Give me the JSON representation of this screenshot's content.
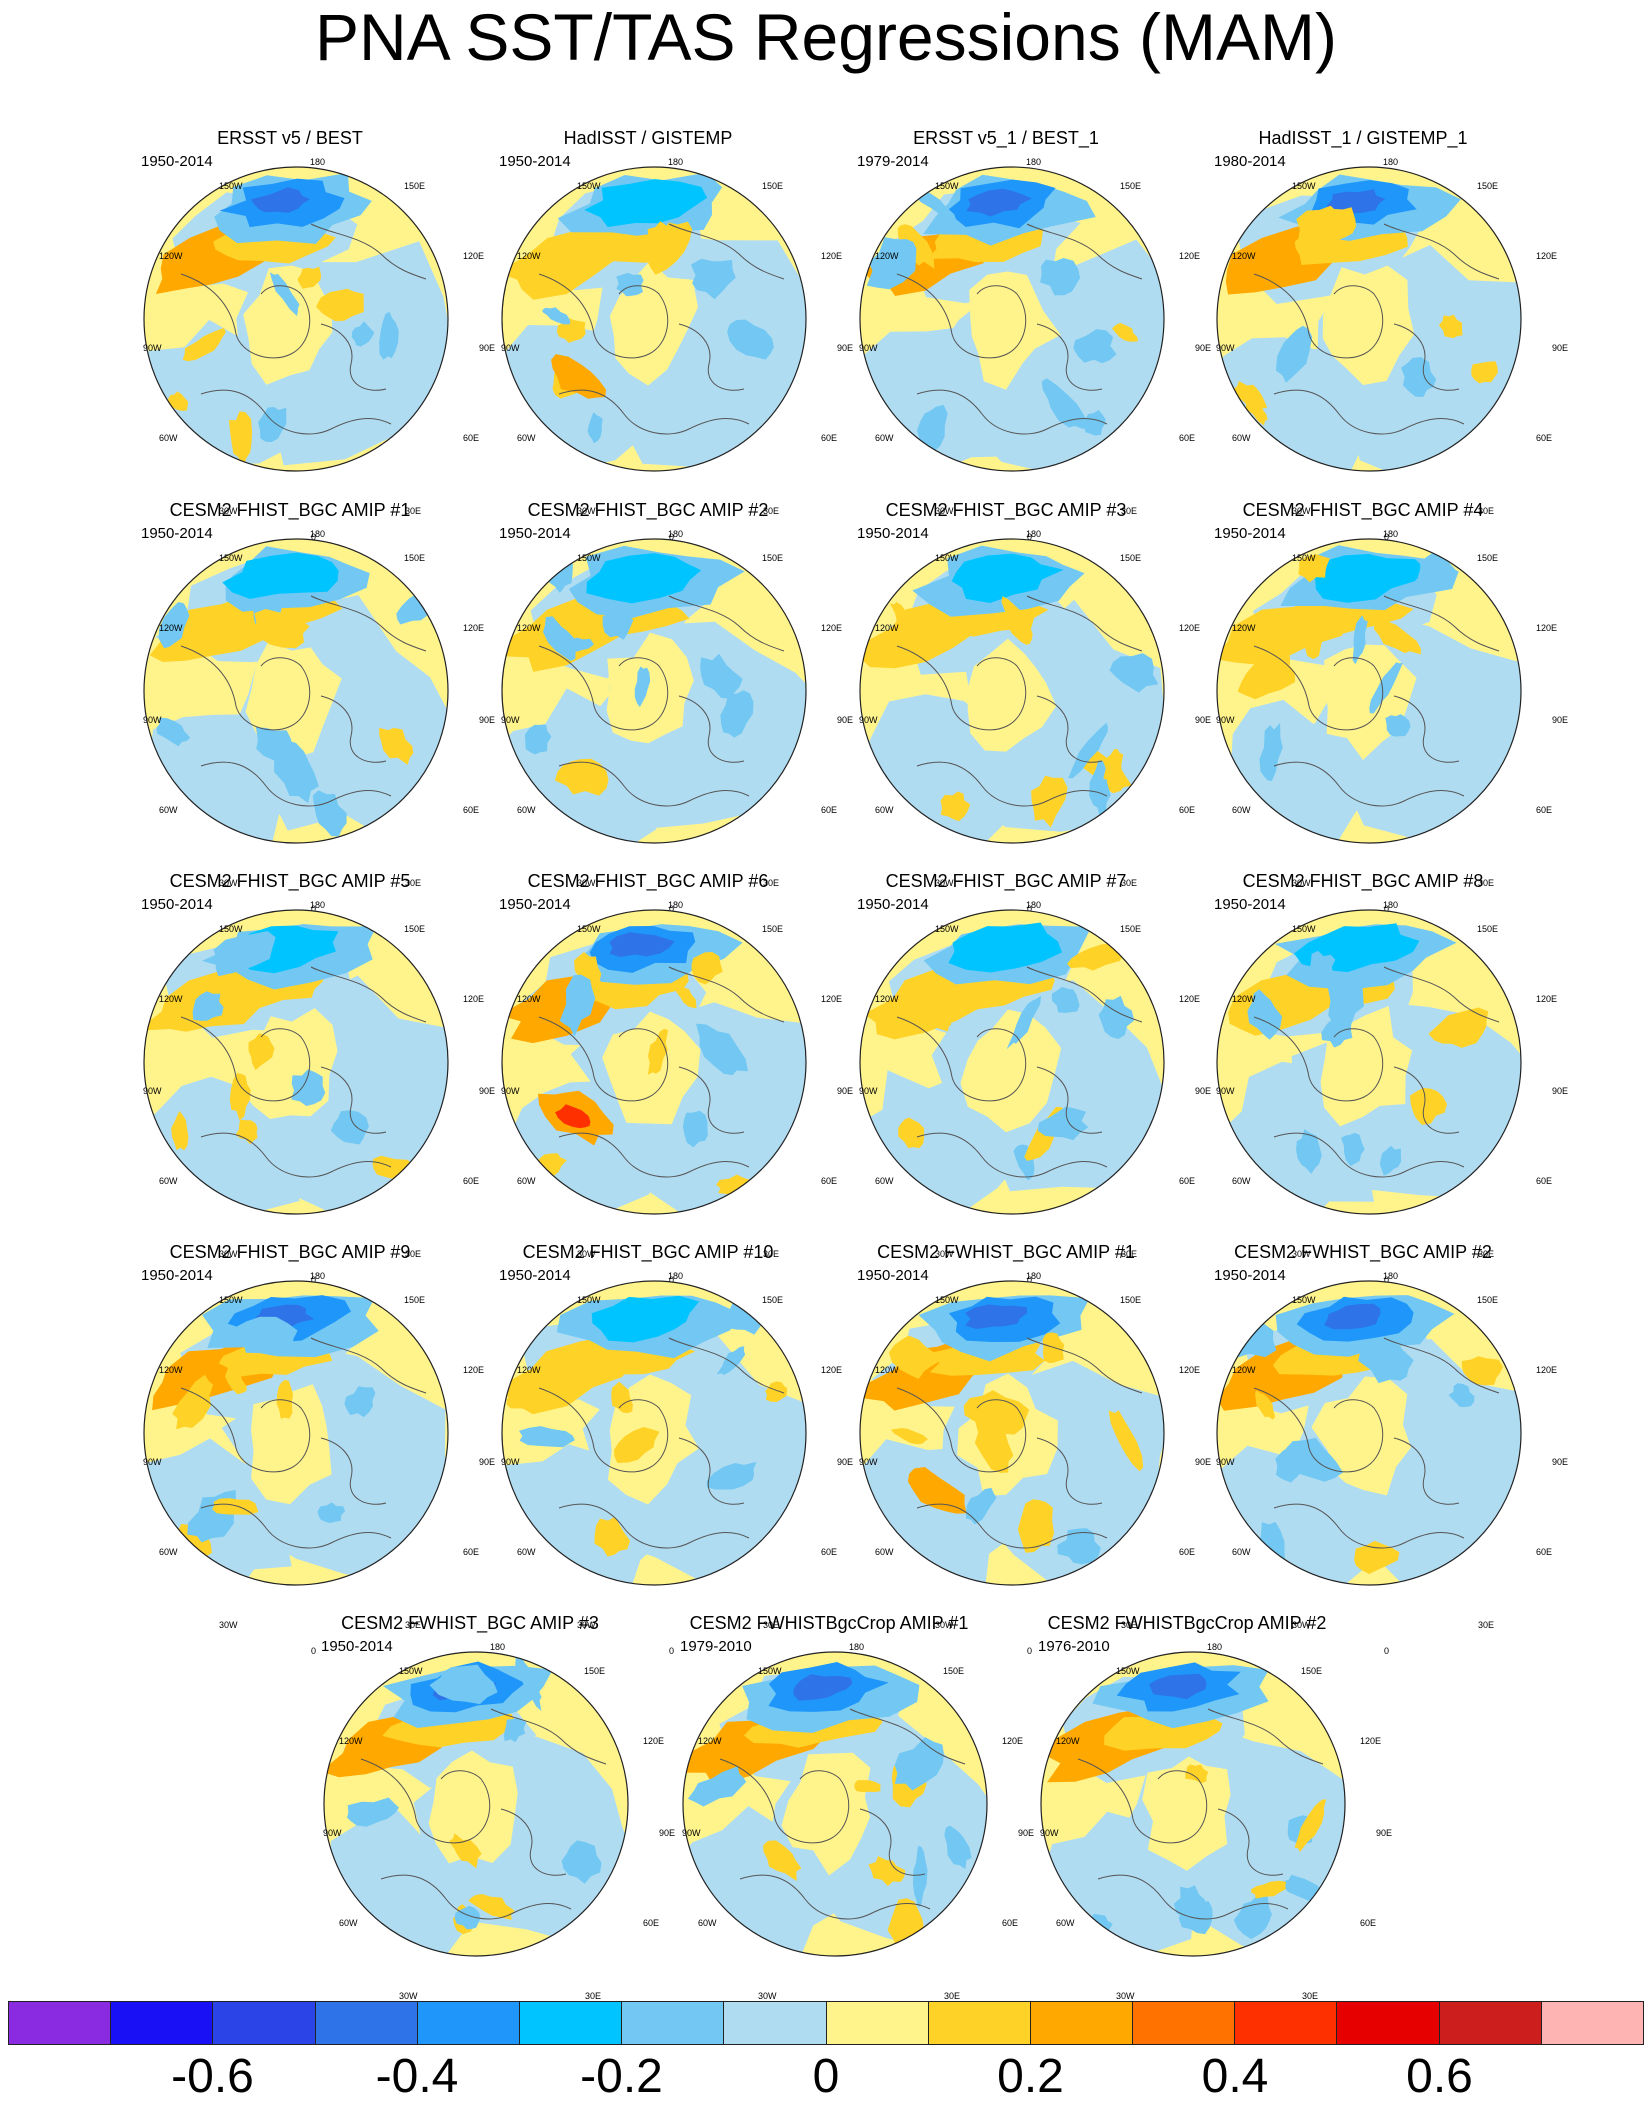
{
  "figure": {
    "title": "PNA SST/TAS Regressions (MAM)",
    "colorbar": {
      "colors": [
        "#8a2be2",
        "#1a10f5",
        "#2a44e8",
        "#2e74e8",
        "#1e96fa",
        "#00c4ff",
        "#72c8f2",
        "#b0dcf2",
        "#fff48c",
        "#ffd228",
        "#ffa800",
        "#ff7200",
        "#ff3000",
        "#e60000",
        "#cd1e1e",
        "#ffb4b4"
      ],
      "labels": [
        "-0.6",
        "-0.4",
        "-0.2",
        "0",
        "0.2",
        "0.4",
        "0.6"
      ]
    }
  },
  "map_labels": {
    "lon": [
      "180",
      "150E",
      "120E",
      "90E",
      "60E",
      "30E",
      "0",
      "30W",
      "60W",
      "90W",
      "120W",
      "150W"
    ]
  },
  "panels": [
    {
      "title": "ERSST v5 / BEST",
      "period": "1950-2014"
    },
    {
      "title": "HadISST / GISTEMP",
      "period": "1950-2014"
    },
    {
      "title": "ERSST v5_1 / BEST_1",
      "period": "1979-2014"
    },
    {
      "title": "HadISST_1 / GISTEMP_1",
      "period": "1980-2014"
    },
    {
      "title": "CESM2 FHIST_BGC AMIP #1",
      "period": "1950-2014"
    },
    {
      "title": "CESM2 FHIST_BGC AMIP #2",
      "period": "1950-2014"
    },
    {
      "title": "CESM2 FHIST_BGC AMIP #3",
      "period": "1950-2014"
    },
    {
      "title": "CESM2 FHIST_BGC AMIP #4",
      "period": "1950-2014"
    },
    {
      "title": "CESM2 FHIST_BGC AMIP #5",
      "period": "1950-2014"
    },
    {
      "title": "CESM2 FHIST_BGC AMIP #6",
      "period": "1950-2014"
    },
    {
      "title": "CESM2 FHIST_BGC AMIP #7",
      "period": "1950-2014"
    },
    {
      "title": "CESM2 FHIST_BGC AMIP #8",
      "period": "1950-2014"
    },
    {
      "title": "CESM2 FHIST_BGC AMIP #9",
      "period": "1950-2014"
    },
    {
      "title": "CESM2 FHIST_BGC AMIP #10",
      "period": "1950-2014"
    },
    {
      "title": "CESM2 FWHIST_BGC AMIP #1",
      "period": "1950-2014"
    },
    {
      "title": "CESM2 FWHIST_BGC AMIP #2",
      "period": "1950-2014"
    },
    {
      "title": "CESM2 FWHIST_BGC AMIP #3",
      "period": "1950-2014"
    },
    {
      "title": "CESM2 FWHISTBgcCrop AMIP #1",
      "period": "1979-2010"
    },
    {
      "title": "CESM2 FWHISTBgcCrop AMIP #2",
      "period": "1976-2010"
    }
  ]
}
